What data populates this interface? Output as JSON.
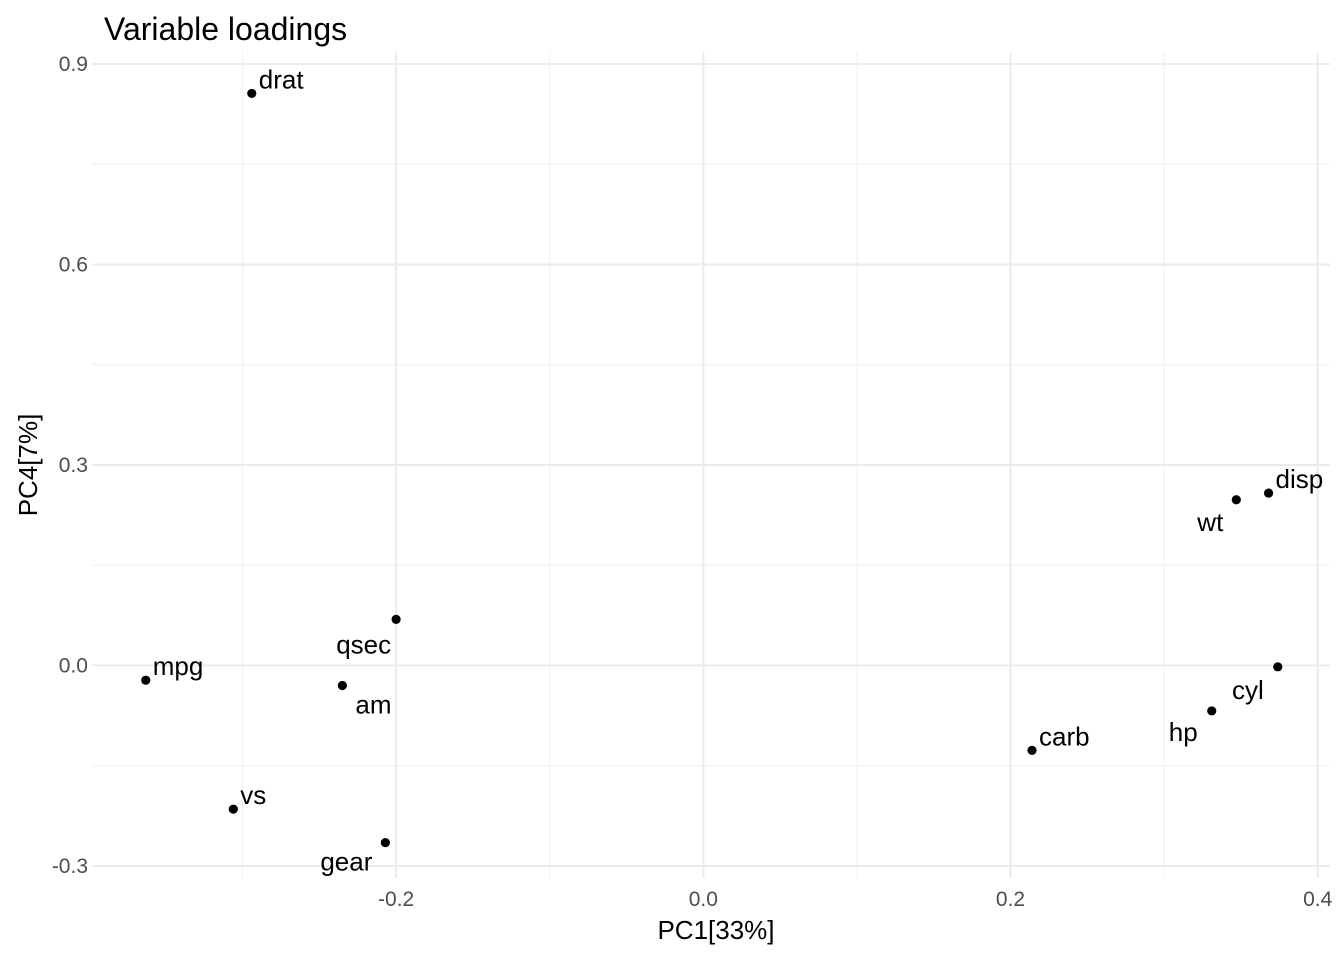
{
  "chart_data": {
    "type": "scatter",
    "title": "Variable loadings",
    "xlabel": "PC1[33%]",
    "ylabel": "PC4[7%]",
    "xlim": [
      -0.398,
      0.408
    ],
    "ylim": [
      -0.318,
      0.918
    ],
    "x_ticks": [
      {
        "value": -0.2,
        "label": "-0.2"
      },
      {
        "value": 0.0,
        "label": "0.0"
      },
      {
        "value": 0.2,
        "label": "0.2"
      },
      {
        "value": 0.4,
        "label": "0.4"
      }
    ],
    "y_ticks": [
      {
        "value": -0.3,
        "label": "-0.3"
      },
      {
        "value": 0.0,
        "label": "0.0"
      },
      {
        "value": 0.3,
        "label": "0.3"
      },
      {
        "value": 0.6,
        "label": "0.6"
      },
      {
        "value": 0.9,
        "label": "0.9"
      }
    ],
    "x_minor": [
      -0.3,
      -0.1,
      0.1,
      0.3
    ],
    "y_minor": [
      -0.15,
      0.15,
      0.45,
      0.75
    ],
    "grid": true,
    "legend": "none",
    "point_color": "#000000",
    "points": [
      {
        "label": "drat",
        "x": -0.294,
        "y": 0.856,
        "label_pos": "upper-right"
      },
      {
        "label": "disp",
        "x": 0.368,
        "y": 0.258,
        "label_pos": "upper-right"
      },
      {
        "label": "wt",
        "x": 0.347,
        "y": 0.248,
        "label_pos": "lower-left"
      },
      {
        "label": "qsec",
        "x": -0.2,
        "y": 0.069,
        "label_pos": "lower-left"
      },
      {
        "label": "mpg",
        "x": -0.363,
        "y": -0.022,
        "label_pos": "upper-right"
      },
      {
        "label": "am",
        "x": -0.235,
        "y": -0.03,
        "label_pos": "lower-right"
      },
      {
        "label": "cyl",
        "x": 0.374,
        "y": -0.002,
        "label_pos": "lower-left"
      },
      {
        "label": "hp",
        "x": 0.331,
        "y": -0.068,
        "label_pos": "lower-left"
      },
      {
        "label": "carb",
        "x": 0.214,
        "y": -0.127,
        "label_pos": "upper-right"
      },
      {
        "label": "vs",
        "x": -0.306,
        "y": -0.215,
        "label_pos": "upper-right"
      },
      {
        "label": "gear",
        "x": -0.207,
        "y": -0.265,
        "label_pos": "lower-left"
      }
    ]
  }
}
